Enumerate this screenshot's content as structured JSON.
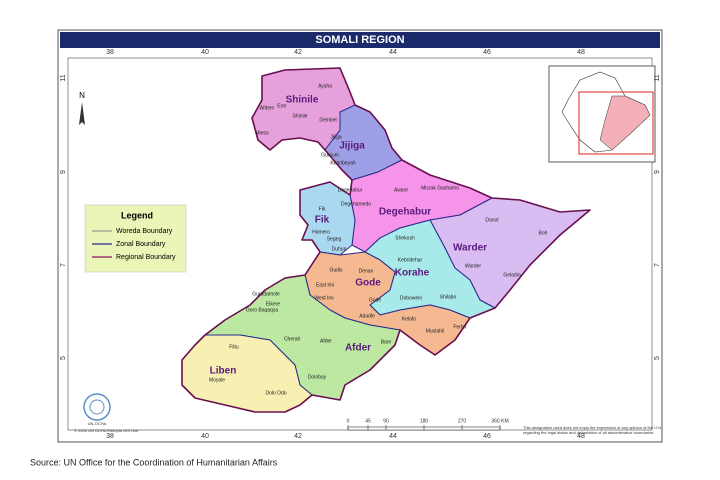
{
  "title": "SOMALI REGION",
  "longitudes": [
    "38",
    "40",
    "42",
    "44",
    "46",
    "48"
  ],
  "latitudes": [
    "11",
    "9",
    "7",
    "5"
  ],
  "north": "N",
  "legend": {
    "title": "Legend",
    "items": [
      "Woreda Boundary",
      "Zonal Boundary",
      "Regional Boundary"
    ]
  },
  "zones": [
    {
      "name": "Shinile",
      "woredas": [
        "Aysha",
        "Afdem",
        "Erer",
        "Shinile",
        "Dembel",
        "Mieso"
      ]
    },
    {
      "name": "Jijiga",
      "woredas": [
        "Jijiga",
        "Gursum",
        "Kebribeyah"
      ]
    },
    {
      "name": "Degehabur",
      "woredas": [
        "Degehabur",
        "Aware",
        "Misrak Gashamo",
        "Degehamedo"
      ]
    },
    {
      "name": "Fik",
      "woredas": [
        "Fik",
        "Hamero",
        "Segeg",
        "Duhun"
      ]
    },
    {
      "name": "Warder",
      "woredas": [
        "Danot",
        "Boh",
        "Warder",
        "Geladin"
      ]
    },
    {
      "name": "Korahe",
      "woredas": [
        "Shekosh",
        "Kebridehar",
        "Dobowein",
        "Shilabo"
      ]
    },
    {
      "name": "Gode",
      "woredas": [
        "Denan",
        "Gudis",
        "East Imi",
        "West Imi",
        "Gode",
        "Adadle",
        "Kelafo",
        "Mustahil",
        "Ferfer"
      ]
    },
    {
      "name": "Afder",
      "woredas": [
        "Guradamole",
        "Goro Baqaqsa",
        "Elkere",
        "Cherati",
        "Afder",
        "Bare",
        "Dolobay"
      ]
    },
    {
      "name": "Liben",
      "woredas": [
        "Filtu",
        "Moyale",
        "Dolo Odo"
      ]
    }
  ],
  "scale": {
    "ticks": [
      "0",
      "45",
      "90",
      "180",
      "270",
      "360 KM"
    ]
  },
  "logo": "UN-OCHA",
  "copyright": "© 2005 UN OCHA Ethiopia GIS Unit",
  "disclaimer": [
    "This designation used does not imply the expression of any opinion of the U.N",
    "regarding the legal status and delimitation of all administrative boundaries."
  ],
  "source": "Source: UN Office for the Coordination of Humanitarian Affairs"
}
